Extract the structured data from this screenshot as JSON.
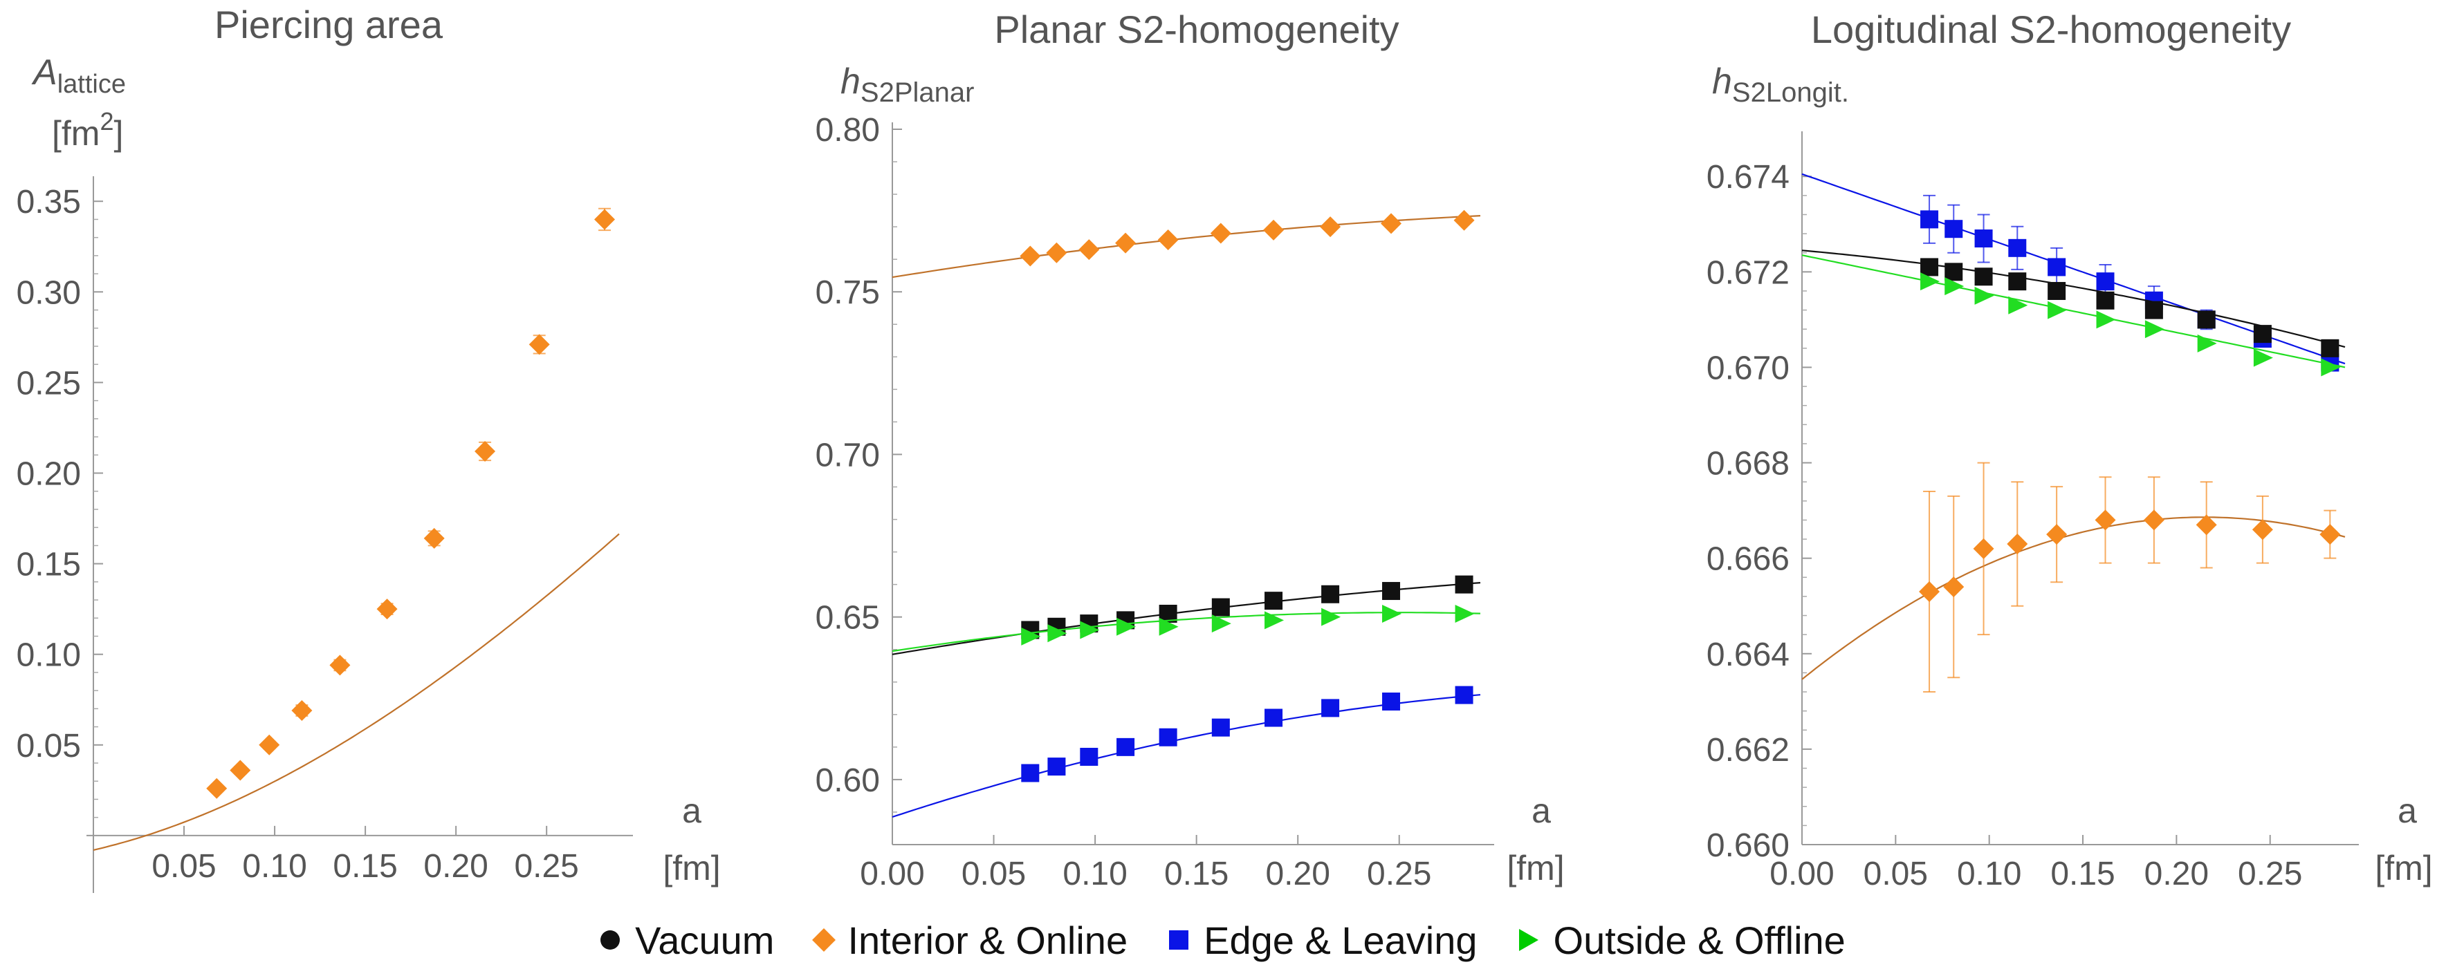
{
  "colors": {
    "vacuum": "#111111",
    "interior": "#f58a1f",
    "interior_line": "#c0722a",
    "edge": "#0a14e6",
    "outside": "#22dd22"
  },
  "legend": [
    {
      "label": "Vacuum",
      "marker": "circle",
      "color": "#111111"
    },
    {
      "label": "Interior & Online",
      "marker": "diamond",
      "color": "#f58a1f"
    },
    {
      "label": "Edge & Leaving",
      "marker": "square",
      "color": "#0a14e6"
    },
    {
      "label": "Outside & Offline",
      "marker": "triangle",
      "color": "#22dd22"
    }
  ],
  "chart_data": [
    {
      "type": "scatter",
      "title": "Piercing area",
      "ylabel_main": "A",
      "ylabel_sub": "lattice",
      "ylabel_unit_pre": "[fm",
      "ylabel_unit_sup": "2",
      "ylabel_unit_post": "]",
      "xlabel": "a",
      "xunit": "[fm]",
      "xlim": [
        0,
        0.29
      ],
      "ylim": [
        -0.005,
        0.36
      ],
      "xticks": [
        0.05,
        0.1,
        0.15,
        0.2,
        0.25
      ],
      "xticklabels": [
        "0.05",
        "0.10",
        "0.15",
        "0.20",
        "0.25"
      ],
      "yticks": [
        0.05,
        0.1,
        0.15,
        0.2,
        0.25,
        0.3,
        0.35
      ],
      "yticklabels": [
        "0.05",
        "0.10",
        "0.15",
        "0.20",
        "0.25",
        "0.30",
        "0.35"
      ],
      "series": [
        {
          "name": "Interior & Online",
          "marker": "diamond",
          "color": "#f58a1f",
          "x": [
            0.068,
            0.081,
            0.097,
            0.115,
            0.136,
            0.162,
            0.188,
            0.216,
            0.246,
            0.282
          ],
          "y": [
            0.026,
            0.036,
            0.05,
            0.069,
            0.094,
            0.125,
            0.164,
            0.212,
            0.271,
            0.34
          ],
          "err": [
            0.002,
            0.002,
            0.002,
            0.003,
            0.003,
            0.003,
            0.004,
            0.005,
            0.005,
            0.006
          ],
          "fit": {
            "c0": -0.008,
            "c1": 0.23,
            "c2": 1.6,
            "c3": -1.1,
            "x0": 0.0
          }
        }
      ]
    },
    {
      "type": "scatter",
      "title": "Planar S2-homogeneity",
      "ylabel_main": "h",
      "ylabel_sub": "S2Planar",
      "xlabel": "a",
      "xunit": "[fm]",
      "xlim": [
        0,
        0.29
      ],
      "ylim": [
        0.58,
        0.8
      ],
      "xticks": [
        0.0,
        0.05,
        0.1,
        0.15,
        0.2,
        0.25
      ],
      "xticklabels": [
        "0.00",
        "0.05",
        "0.10",
        "0.15",
        "0.20",
        "0.25"
      ],
      "yticks": [
        0.6,
        0.65,
        0.7,
        0.75,
        0.8
      ],
      "yticklabels": [
        "0.60",
        "0.65",
        "0.70",
        "0.75",
        "0.80"
      ],
      "series": [
        {
          "name": "Interior & Online",
          "marker": "diamond",
          "color": "#f58a1f",
          "x": [
            0.068,
            0.081,
            0.097,
            0.115,
            0.136,
            0.162,
            0.188,
            0.216,
            0.246,
            0.282
          ],
          "y": [
            0.761,
            0.762,
            0.763,
            0.765,
            0.766,
            0.768,
            0.769,
            0.77,
            0.771,
            0.772
          ],
          "err": [
            0,
            0,
            0,
            0,
            0,
            0,
            0,
            0,
            0,
            0
          ],
          "fit": {
            "c0": 0.7545,
            "c1": 0.1,
            "c2": -0.12,
            "c3": 0,
            "x0": 0.0
          }
        },
        {
          "name": "Vacuum",
          "marker": "square",
          "color": "#111111",
          "x": [
            0.068,
            0.081,
            0.097,
            0.115,
            0.136,
            0.162,
            0.188,
            0.216,
            0.246,
            0.282
          ],
          "y": [
            0.646,
            0.647,
            0.648,
            0.649,
            0.651,
            0.653,
            0.655,
            0.657,
            0.658,
            0.66
          ],
          "err": [
            0,
            0,
            0,
            0,
            0,
            0,
            0,
            0,
            0,
            0
          ],
          "fit": {
            "c0": 0.6385,
            "c1": 0.105,
            "c2": -0.1,
            "c3": 0,
            "x0": 0.0
          }
        },
        {
          "name": "Outside & Offline",
          "marker": "triangle",
          "color": "#22dd22",
          "x": [
            0.068,
            0.081,
            0.097,
            0.115,
            0.136,
            0.162,
            0.188,
            0.216,
            0.246,
            0.282
          ],
          "y": [
            0.644,
            0.645,
            0.646,
            0.647,
            0.647,
            0.648,
            0.649,
            0.65,
            0.651,
            0.651
          ],
          "err": [
            0,
            0,
            0,
            0,
            0,
            0,
            0,
            0,
            0,
            0
          ],
          "fit": {
            "c0": 0.6395,
            "c1": 0.095,
            "c2": -0.19,
            "c3": 0,
            "x0": 0.0
          }
        },
        {
          "name": "Edge & Leaving",
          "marker": "square",
          "color": "#0a14e6",
          "x": [
            0.068,
            0.081,
            0.097,
            0.115,
            0.136,
            0.162,
            0.188,
            0.216,
            0.246,
            0.282
          ],
          "y": [
            0.602,
            0.604,
            0.607,
            0.61,
            0.613,
            0.616,
            0.619,
            0.622,
            0.624,
            0.626
          ],
          "err": [
            0,
            0,
            0,
            0,
            0,
            0,
            0,
            0,
            0,
            0
          ],
          "fit": {
            "c0": 0.5885,
            "c1": 0.205,
            "c2": -0.26,
            "c3": 0,
            "x0": 0.0
          }
        }
      ]
    },
    {
      "type": "scatter",
      "title": "Logitudinal S2-homogeneity",
      "ylabel_main": "h",
      "ylabel_sub": "S2Longit.",
      "xlabel": "a",
      "xunit": "[fm]",
      "xlim": [
        0,
        0.29
      ],
      "ylim": [
        0.66,
        0.6748
      ],
      "xticks": [
        0.0,
        0.05,
        0.1,
        0.15,
        0.2,
        0.25
      ],
      "xticklabels": [
        "0.00",
        "0.05",
        "0.10",
        "0.15",
        "0.20",
        "0.25"
      ],
      "yticks": [
        0.66,
        0.662,
        0.664,
        0.666,
        0.668,
        0.67,
        0.672,
        0.674
      ],
      "yticklabels": [
        "0.660",
        "0.662",
        "0.664",
        "0.666",
        "0.668",
        "0.670",
        "0.672",
        "0.674"
      ],
      "series": [
        {
          "name": "Edge & Leaving",
          "marker": "square",
          "color": "#0a14e6",
          "x": [
            0.068,
            0.081,
            0.097,
            0.115,
            0.136,
            0.162,
            0.188,
            0.216,
            0.246,
            0.282
          ],
          "y": [
            0.6731,
            0.6729,
            0.6727,
            0.6725,
            0.6721,
            0.6718,
            0.6714,
            0.671,
            0.6706,
            0.6701
          ],
          "err": [
            0.0005,
            0.0005,
            0.0005,
            0.00045,
            0.0004,
            0.00035,
            0.0003,
            0.0002,
            0.00015,
            0.0001
          ],
          "fit": {
            "c0": 0.67405,
            "c1": -0.0137,
            "c2": 0,
            "c3": 0,
            "x0": 0.0
          }
        },
        {
          "name": "Vacuum",
          "marker": "square",
          "color": "#111111",
          "x": [
            0.068,
            0.081,
            0.097,
            0.115,
            0.136,
            0.162,
            0.188,
            0.216,
            0.246,
            0.282
          ],
          "y": [
            0.6721,
            0.672,
            0.6719,
            0.6718,
            0.6716,
            0.6714,
            0.6712,
            0.671,
            0.6707,
            0.6704
          ],
          "err": [
            0,
            0,
            0,
            0,
            0,
            0,
            0,
            0,
            0,
            0
          ],
          "fit": {
            "c0": 0.67245,
            "c1": -0.0035,
            "c2": -0.012,
            "c3": 0,
            "x0": 0.0
          }
        },
        {
          "name": "Outside & Offline",
          "marker": "triangle",
          "color": "#22dd22",
          "x": [
            0.068,
            0.081,
            0.097,
            0.115,
            0.136,
            0.162,
            0.188,
            0.216,
            0.246,
            0.282
          ],
          "y": [
            0.6718,
            0.6717,
            0.6715,
            0.6713,
            0.6712,
            0.671,
            0.6708,
            0.6705,
            0.6702,
            0.67
          ],
          "err": [
            0,
            0,
            0,
            0,
            0,
            0,
            0,
            0,
            0,
            0
          ],
          "fit": {
            "c0": 0.67235,
            "c1": -0.0081,
            "c2": 0,
            "c3": 0,
            "x0": 0.0
          }
        },
        {
          "name": "Interior & Online",
          "marker": "diamond",
          "color": "#f58a1f",
          "x": [
            0.068,
            0.081,
            0.097,
            0.115,
            0.136,
            0.162,
            0.188,
            0.216,
            0.246,
            0.282
          ],
          "y": [
            0.6653,
            0.6654,
            0.6662,
            0.6663,
            0.6665,
            0.6668,
            0.6668,
            0.6667,
            0.6666,
            0.6665
          ],
          "err": [
            0.0021,
            0.0019,
            0.0018,
            0.0013,
            0.001,
            0.0009,
            0.0009,
            0.0009,
            0.0007,
            0.0005
          ],
          "fit": {
            "c0": 0.66686,
            "c1": 0,
            "c2": -0.0735,
            "c3": 0,
            "x0": 0.215
          }
        }
      ]
    }
  ]
}
